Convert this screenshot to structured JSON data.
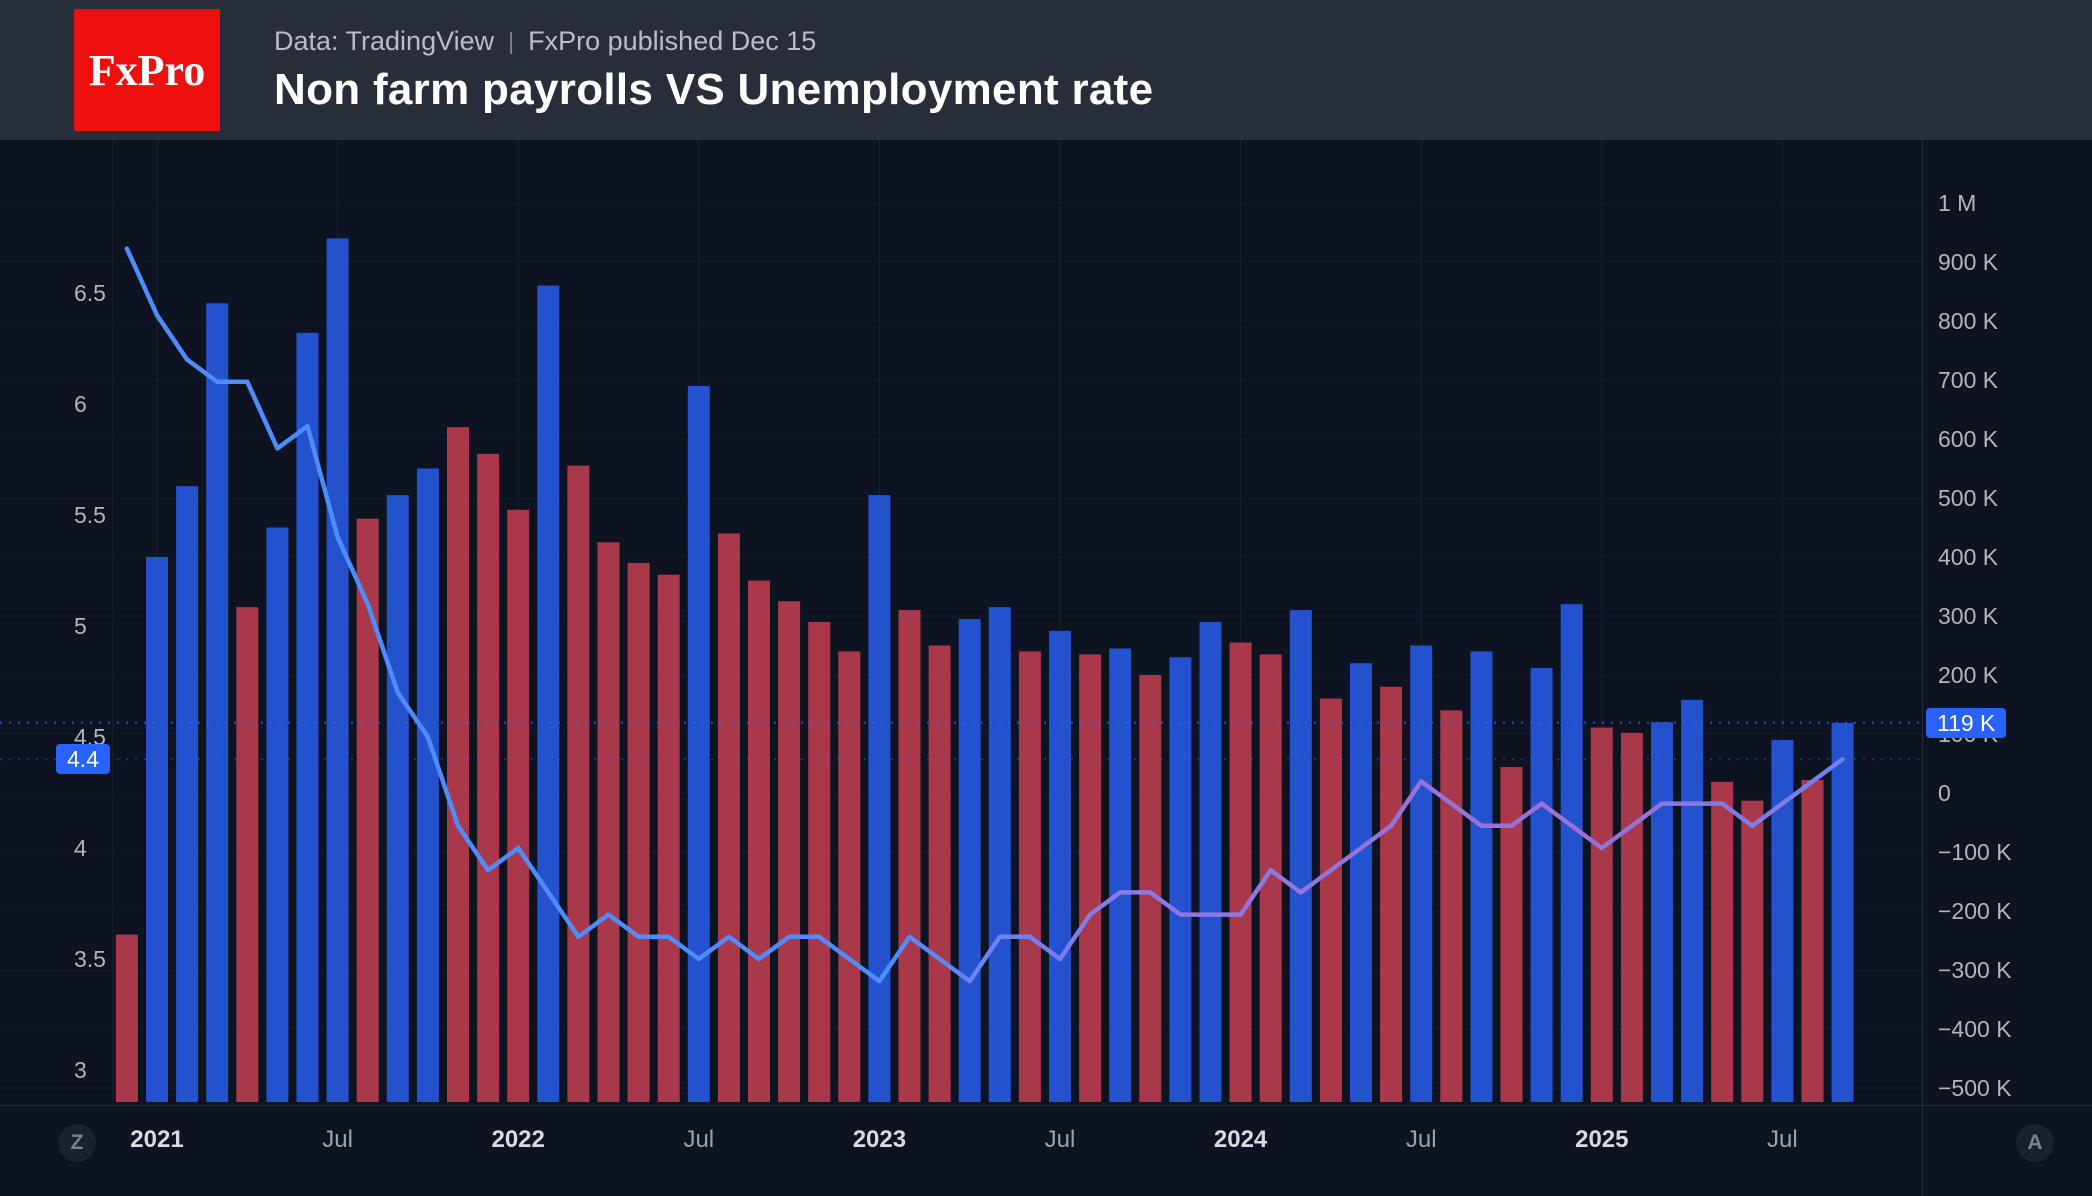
{
  "header": {
    "logo_text": "FxPro",
    "source": "Data: TradingView",
    "divider": "|",
    "published": "FxPro published Dec 15",
    "title": "Non farm payrolls VS Unemployment rate"
  },
  "chart_data": {
    "type": "bar+line",
    "title": "Non farm payrolls VS Unemployment rate",
    "months": [
      "2020-12",
      "2021-01",
      "2021-02",
      "2021-03",
      "2021-04",
      "2021-05",
      "2021-06",
      "2021-07",
      "2021-08",
      "2021-09",
      "2021-10",
      "2021-11",
      "2021-12",
      "2022-01",
      "2022-02",
      "2022-03",
      "2022-04",
      "2022-05",
      "2022-06",
      "2022-07",
      "2022-08",
      "2022-09",
      "2022-10",
      "2022-11",
      "2022-12",
      "2023-01",
      "2023-02",
      "2023-03",
      "2023-04",
      "2023-05",
      "2023-06",
      "2023-07",
      "2023-08",
      "2023-09",
      "2023-10",
      "2023-11",
      "2023-12",
      "2024-01",
      "2024-02",
      "2024-03",
      "2024-04",
      "2024-05",
      "2024-06",
      "2024-07",
      "2024-08",
      "2024-09",
      "2024-10",
      "2024-11",
      "2024-12",
      "2025-01",
      "2025-02",
      "2025-03",
      "2025-04",
      "2025-05",
      "2025-06",
      "2025-07",
      "2025-08",
      "2025-09"
    ],
    "series": [
      {
        "name": "Non farm payrolls (monthly change, thousands)",
        "type": "bar",
        "axis": "right",
        "values": [
          -240,
          400,
          520,
          830,
          315,
          450,
          780,
          940,
          465,
          505,
          550,
          620,
          575,
          480,
          860,
          555,
          425,
          390,
          370,
          690,
          440,
          360,
          325,
          290,
          240,
          505,
          310,
          250,
          295,
          315,
          240,
          275,
          235,
          245,
          200,
          230,
          290,
          255,
          235,
          310,
          160,
          220,
          180,
          250,
          140,
          240,
          44,
          212,
          320,
          111,
          102,
          120,
          158,
          19,
          -13,
          90,
          22,
          119
        ],
        "bar_colors": [
          "down",
          "up",
          "up",
          "up",
          "down",
          "up",
          "up",
          "up",
          "down",
          "up",
          "up",
          "down",
          "down",
          "down",
          "up",
          "down",
          "down",
          "down",
          "down",
          "up",
          "down",
          "down",
          "down",
          "down",
          "down",
          "up",
          "down",
          "down",
          "up",
          "up",
          "down",
          "up",
          "down",
          "up",
          "down",
          "up",
          "up",
          "down",
          "down",
          "up",
          "down",
          "up",
          "down",
          "up",
          "down",
          "up",
          "down",
          "up",
          "up",
          "down",
          "down",
          "up",
          "up",
          "down",
          "down",
          "up",
          "down",
          "up"
        ]
      },
      {
        "name": "Unemployment rate (%)",
        "type": "line",
        "axis": "left",
        "values": [
          6.7,
          6.4,
          6.2,
          6.1,
          6.1,
          5.8,
          5.9,
          5.4,
          5.1,
          4.7,
          4.5,
          4.1,
          3.9,
          4.0,
          3.8,
          3.6,
          3.7,
          3.6,
          3.6,
          3.5,
          3.6,
          3.5,
          3.6,
          3.6,
          3.5,
          3.4,
          3.6,
          3.5,
          3.4,
          3.6,
          3.6,
          3.5,
          3.7,
          3.8,
          3.8,
          3.7,
          3.7,
          3.7,
          3.9,
          3.8,
          3.9,
          4.0,
          4.1,
          4.3,
          4.2,
          4.1,
          4.1,
          4.2,
          4.1,
          4.0,
          4.1,
          4.2,
          4.2,
          4.2,
          4.1,
          4.2,
          4.3,
          4.4
        ]
      }
    ],
    "left_axis": {
      "ticks": [
        "6.5",
        "6",
        "5.5",
        "5",
        "4.5",
        "4",
        "3.5",
        "3"
      ],
      "range": [
        2.8,
        6.95
      ],
      "last_value": "4.4"
    },
    "right_axis": {
      "ticks": [
        "1 M",
        "900 K",
        "800 K",
        "700 K",
        "600 K",
        "500 K",
        "400 K",
        "300 K",
        "200 K",
        "100 K",
        "0",
        "−100 K",
        "−200 K",
        "−300 K",
        "−400 K",
        "−500 K"
      ],
      "tick_values": [
        1000,
        900,
        800,
        700,
        600,
        500,
        400,
        300,
        200,
        100,
        0,
        -100,
        -200,
        -300,
        -400,
        -500
      ],
      "range": [
        -560,
        1080
      ],
      "last_value": "119 K"
    },
    "x_axis": {
      "ticks": [
        {
          "label": "2021",
          "major": true
        },
        {
          "label": "Jul",
          "major": false
        },
        {
          "label": "2022",
          "major": true
        },
        {
          "label": "Jul",
          "major": false
        },
        {
          "label": "2023",
          "major": true
        },
        {
          "label": "Jul",
          "major": false
        },
        {
          "label": "2024",
          "major": true
        },
        {
          "label": "Jul",
          "major": false
        },
        {
          "label": "2025",
          "major": true
        },
        {
          "label": "Jul",
          "major": false
        }
      ]
    },
    "grid": true,
    "legend": "none"
  },
  "toolbar": {
    "left_corner_label": "Z",
    "right_corner_label": "A"
  },
  "colors": {
    "header_bg": "#282d3a",
    "logo_bg": "#ee0f0f",
    "chart_bg": "#0d1321",
    "bar_up": "#2451cd",
    "bar_down": "#a9394a",
    "line": "#4e8bfd",
    "line_alt": "#9a70d4",
    "badge": "#2962ff",
    "axis_text": "#b2b5be",
    "axis_text_major": "#d8dbe3",
    "grid_v": "#1b2234",
    "grid_h": "#141a29",
    "separator": "#242b3b"
  }
}
